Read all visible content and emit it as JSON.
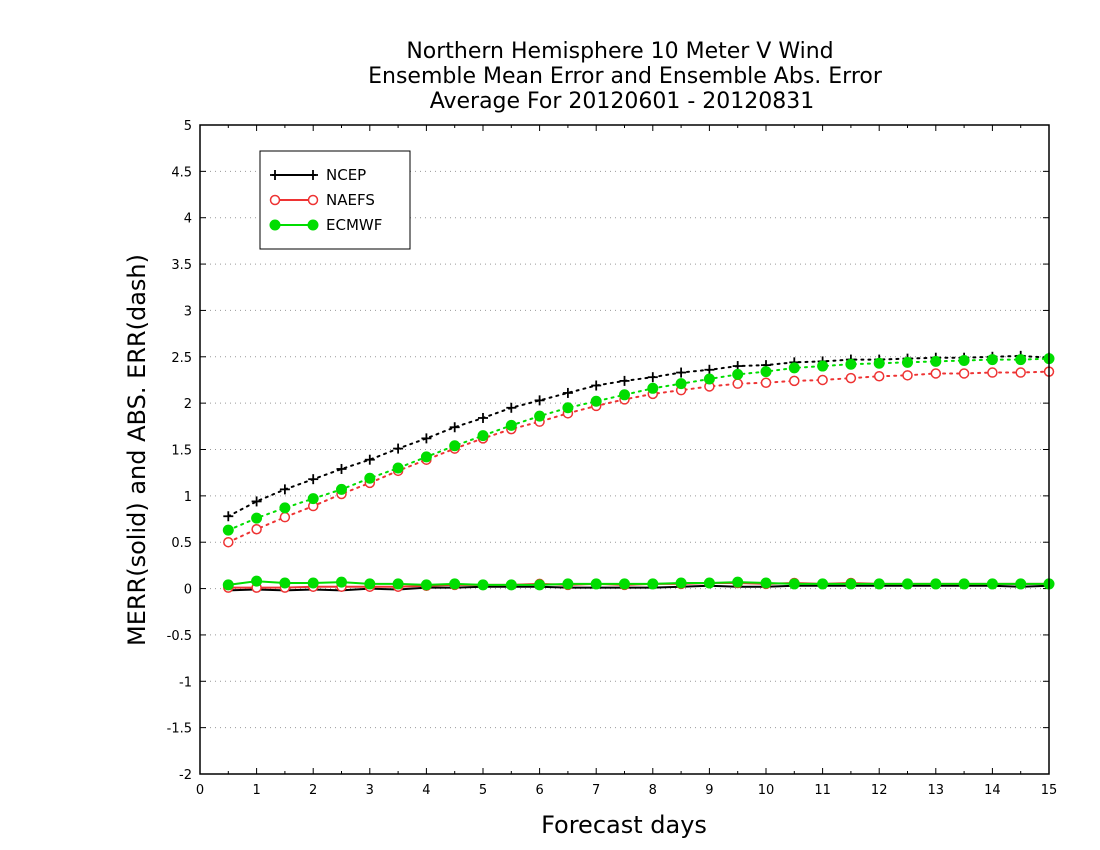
{
  "chart_data": {
    "type": "line",
    "title_lines": [
      "Northern Hemisphere 10 Meter V Wind",
      "Ensemble Mean Error and Ensemble Abs. Error",
      "Average For 20120601 - 20120831"
    ],
    "xlabel": "Forecast days",
    "ylabel": "MERR(solid) and ABS. ERR(dash)",
    "xlim": [
      0,
      15
    ],
    "ylim": [
      -2,
      5
    ],
    "x_ticks": [
      "0",
      "1",
      "2",
      "3",
      "4",
      "5",
      "6",
      "7",
      "8",
      "9",
      "10",
      "11",
      "12",
      "13",
      "14",
      "15"
    ],
    "y_ticks": [
      "-2",
      "-1.5",
      "-1",
      "-0.5",
      "0",
      "0.5",
      "1",
      "1.5",
      "2",
      "2.5",
      "3",
      "3.5",
      "4",
      "4.5",
      "5"
    ],
    "grid": "horizontal dotted",
    "legend_position": "top-left",
    "x": [
      0.5,
      1,
      1.5,
      2,
      2.5,
      3,
      3.5,
      4,
      4.5,
      5,
      5.5,
      6,
      6.5,
      7,
      7.5,
      8,
      8.5,
      9,
      9.5,
      10,
      10.5,
      11,
      11.5,
      12,
      12.5,
      13,
      13.5,
      14,
      14.5,
      15
    ],
    "series": [
      {
        "name": "NCEP",
        "color": "#000000",
        "marker": "plus",
        "abs_err": [
          0.78,
          0.94,
          1.07,
          1.18,
          1.29,
          1.39,
          1.51,
          1.62,
          1.74,
          1.84,
          1.95,
          2.03,
          2.11,
          2.19,
          2.24,
          2.28,
          2.33,
          2.36,
          2.4,
          2.41,
          2.44,
          2.45,
          2.47,
          2.47,
          2.48,
          2.49,
          2.49,
          2.5,
          2.51,
          2.49
        ],
        "mean_err": [
          -0.02,
          -0.01,
          -0.02,
          -0.01,
          -0.02,
          0.0,
          -0.01,
          0.01,
          0.01,
          0.02,
          0.02,
          0.02,
          0.01,
          0.01,
          0.01,
          0.01,
          0.02,
          0.03,
          0.02,
          0.02,
          0.03,
          0.03,
          0.03,
          0.03,
          0.03,
          0.03,
          0.03,
          0.03,
          0.02,
          0.03
        ]
      },
      {
        "name": "NAEFS",
        "color": "#ee3333",
        "marker": "open-circle",
        "abs_err": [
          0.5,
          0.64,
          0.77,
          0.89,
          1.02,
          1.14,
          1.27,
          1.39,
          1.51,
          1.62,
          1.72,
          1.8,
          1.89,
          1.97,
          2.04,
          2.1,
          2.14,
          2.18,
          2.21,
          2.22,
          2.24,
          2.25,
          2.27,
          2.29,
          2.3,
          2.32,
          2.32,
          2.33,
          2.33,
          2.34
        ],
        "mean_err": [
          0.01,
          0.01,
          0.01,
          0.02,
          0.02,
          0.02,
          0.02,
          0.03,
          0.04,
          0.04,
          0.04,
          0.05,
          0.04,
          0.05,
          0.04,
          0.05,
          0.05,
          0.06,
          0.06,
          0.05,
          0.06,
          0.05,
          0.06,
          0.05,
          0.05,
          0.05,
          0.05,
          0.05,
          0.05,
          0.05
        ]
      },
      {
        "name": "ECMWF",
        "color": "#00dd00",
        "marker": "filled-circle",
        "abs_err": [
          0.63,
          0.76,
          0.87,
          0.97,
          1.07,
          1.19,
          1.3,
          1.42,
          1.54,
          1.65,
          1.76,
          1.86,
          1.95,
          2.02,
          2.09,
          2.16,
          2.21,
          2.26,
          2.31,
          2.34,
          2.38,
          2.4,
          2.42,
          2.43,
          2.44,
          2.45,
          2.46,
          2.47,
          2.47,
          2.48
        ],
        "mean_err": [
          0.04,
          0.08,
          0.06,
          0.06,
          0.07,
          0.05,
          0.05,
          0.04,
          0.05,
          0.04,
          0.04,
          0.04,
          0.05,
          0.05,
          0.05,
          0.05,
          0.06,
          0.06,
          0.07,
          0.06,
          0.05,
          0.05,
          0.05,
          0.05,
          0.05,
          0.05,
          0.05,
          0.05,
          0.05,
          0.05
        ]
      }
    ]
  }
}
